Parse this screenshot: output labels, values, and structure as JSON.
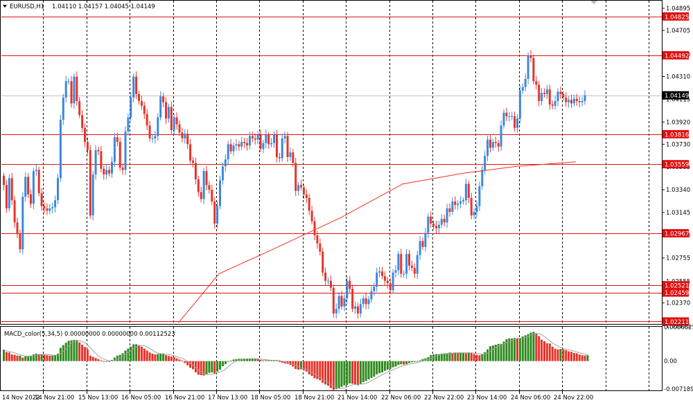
{
  "window": {
    "symbol_label": "EURUSD,H1",
    "ohlc_label": "1.04110 1.04157 1.04045 1.04149",
    "menu_icon": "triangle-down-icon"
  },
  "colors": {
    "bull": "#3c87dc",
    "bear": "#e5332a",
    "hline": "#e01010",
    "ma": "#f03020",
    "grid": "#000000",
    "macd_bull": "#2e8b1e",
    "macd_bear": "#e5332a",
    "signal": "#a0a0a0",
    "price_box": "#e01010",
    "current_box": "#000000"
  },
  "chart_data": [
    {
      "type": "candlestick",
      "title": "EURUSD,H1",
      "ylim": [
        1.0219,
        1.0496
      ],
      "y_ticks": [
        "1.04895",
        "1.04705",
        "1.04500",
        "1.04310",
        "1.04115",
        "1.03920",
        "1.03730",
        "1.03535",
        "1.03340",
        "1.03145",
        "1.02950",
        "1.02755",
        "1.02555",
        "1.02370",
        "1.02175"
      ],
      "x_ticks": [
        "14 Nov 2022",
        "14 Nov 21:00",
        "15 Nov 13:00",
        "16 Nov 05:00",
        "16 Nov 21:00",
        "17 Nov 13:00",
        "18 Nov 05:00",
        "18 Nov 21:00",
        "21 Nov 14:00",
        "22 Nov 06:00",
        "22 Nov 22:00",
        "23 Nov 14:00",
        "24 Nov 06:00",
        "24 Nov 22:00"
      ],
      "grid": "vertical dashed",
      "bars_per_label": 16,
      "horizontal_levels": [
        "1.04825",
        "1.04492",
        "1.03816",
        "1.03559",
        "1.02967",
        "1.02521",
        "1.02459",
        "1.02211"
      ],
      "current_price": "1.04149",
      "moving_average": [
        [
          65,
          1.022
        ],
        [
          80,
          1.0262
        ],
        [
          100,
          1.0283
        ],
        [
          125,
          1.031
        ],
        [
          148,
          1.0339
        ],
        [
          158,
          1.0343
        ],
        [
          170,
          1.0348
        ],
        [
          190,
          1.0354
        ],
        [
          212,
          1.0358
        ]
      ],
      "closes": [
        1.0338,
        1.0318,
        1.0344,
        1.0325,
        1.0306,
        1.0296,
        1.0283,
        1.0328,
        1.0345,
        1.033,
        1.0322,
        1.035,
        1.0351,
        1.0331,
        1.032,
        1.0318,
        1.0316,
        1.0318,
        1.0319,
        1.0325,
        1.0344,
        1.0394,
        1.0413,
        1.0427,
        1.0427,
        1.0408,
        1.0431,
        1.041,
        1.0398,
        1.0387,
        1.0375,
        1.0368,
        1.0312,
        1.0347,
        1.0368,
        1.0367,
        1.0352,
        1.0347,
        1.0351,
        1.0348,
        1.0358,
        1.0379,
        1.0375,
        1.0353,
        1.0351,
        1.0384,
        1.0396,
        1.0413,
        1.0431,
        1.0416,
        1.041,
        1.0406,
        1.0399,
        1.0389,
        1.0378,
        1.0378,
        1.038,
        1.0396,
        1.0414,
        1.0409,
        1.0395,
        1.0405,
        1.0385,
        1.0396,
        1.039,
        1.0383,
        1.0378,
        1.0382,
        1.0373,
        1.0359,
        1.0357,
        1.0343,
        1.0332,
        1.0326,
        1.035,
        1.0338,
        1.0334,
        1.0324,
        1.0305,
        1.032,
        1.0342,
        1.0354,
        1.036,
        1.0373,
        1.0367,
        1.0372,
        1.0373,
        1.0371,
        1.0375,
        1.0374,
        1.0372,
        1.038,
        1.0378,
        1.0377,
        1.0381,
        1.0369,
        1.0374,
        1.0381,
        1.0373,
        1.0374,
        1.0381,
        1.0362,
        1.0361,
        1.0378,
        1.038,
        1.0362,
        1.0366,
        1.0357,
        1.0333,
        1.0338,
        1.0336,
        1.033,
        1.0327,
        1.0316,
        1.0307,
        1.0295,
        1.0288,
        1.0281,
        1.0263,
        1.0256,
        1.0256,
        1.025,
        1.0228,
        1.0232,
        1.0243,
        1.0234,
        1.0241,
        1.0256,
        1.0249,
        1.0232,
        1.0234,
        1.0228,
        1.0236,
        1.0241,
        1.0236,
        1.024,
        1.0247,
        1.0251,
        1.0263,
        1.0264,
        1.026,
        1.0256,
        1.0254,
        1.0248,
        1.0263,
        1.0265,
        1.0279,
        1.0262,
        1.0262,
        1.0279,
        1.0269,
        1.0267,
        1.0262,
        1.0278,
        1.029,
        1.0285,
        1.0297,
        1.0311,
        1.0305,
        1.0303,
        1.0301,
        1.0304,
        1.0309,
        1.0306,
        1.0318,
        1.0315,
        1.0324,
        1.0321,
        1.0322,
        1.0324,
        1.0325,
        1.0339,
        1.0327,
        1.0312,
        1.0315,
        1.032,
        1.0337,
        1.0351,
        1.0363,
        1.0377,
        1.037,
        1.0375,
        1.0374,
        1.0371,
        1.0389,
        1.04,
        1.0397,
        1.0397,
        1.0397,
        1.0387,
        1.0395,
        1.0419,
        1.0422,
        1.0429,
        1.0449,
        1.0447,
        1.0427,
        1.0424,
        1.041,
        1.0417,
        1.0416,
        1.042,
        1.0407,
        1.0406,
        1.041,
        1.0418,
        1.0416,
        1.0413,
        1.0409,
        1.0411,
        1.0408,
        1.0412,
        1.041,
        1.0409,
        1.041,
        1.0415
      ]
    },
    {
      "type": "bar",
      "title": "MACD_color(5,34,5) 0.00000000 0.00000000 0.00112523",
      "ylim": [
        -0.0075,
        0.0088
      ],
      "y_ticks": [
        "0.00868257",
        "0.00",
        "-0.00718935"
      ],
      "values": [
        0.0029,
        0.0023,
        0.0022,
        0.0017,
        0.0016,
        0.0014,
        0.0014,
        0.0009,
        0.0012,
        0.0013,
        0.0014,
        0.0017,
        0.0019,
        0.0018,
        0.0018,
        0.0016,
        0.0015,
        0.0014,
        0.0014,
        0.0015,
        0.0019,
        0.0034,
        0.0041,
        0.0047,
        0.0052,
        0.0053,
        0.0054,
        0.0054,
        0.0048,
        0.0042,
        0.0036,
        0.003,
        0.0014,
        0.0011,
        0.0008,
        0.0005,
        0.0002,
        -0.0001,
        -0.0001,
        0.0,
        0.0003,
        0.0009,
        0.0014,
        0.0016,
        0.002,
        0.0027,
        0.0032,
        0.0037,
        0.0043,
        0.0043,
        0.0041,
        0.0037,
        0.0032,
        0.0027,
        0.0022,
        0.0019,
        0.0017,
        0.0018,
        0.0019,
        0.0019,
        0.0015,
        0.0013,
        0.0012,
        0.001,
        0.0007,
        0.0004,
        0.0001,
        -0.0005,
        -0.0011,
        -0.0017,
        -0.0021,
        -0.0029,
        -0.0035,
        -0.0036,
        -0.0037,
        -0.0034,
        -0.003,
        -0.0029,
        -0.0032,
        -0.0027,
        -0.0022,
        -0.0013,
        -0.0008,
        -0.0002,
        0.0001,
        0.0004,
        0.0005,
        0.0006,
        0.0006,
        0.0006,
        0.0006,
        0.0006,
        0.0006,
        0.0006,
        0.0005,
        0.0003,
        0.0002,
        0.0002,
        0.0002,
        0.0002,
        0.0002,
        0.0002,
        -0.0002,
        -0.0004,
        -0.0006,
        -0.0007,
        -0.001,
        -0.0014,
        -0.002,
        -0.0022,
        -0.0021,
        -0.0024,
        -0.0027,
        -0.0034,
        -0.0038,
        -0.0044,
        -0.0046,
        -0.0049,
        -0.0056,
        -0.006,
        -0.0063,
        -0.0069,
        -0.0074,
        -0.0072,
        -0.007,
        -0.0066,
        -0.0062,
        -0.0061,
        -0.0057,
        -0.0058,
        -0.006,
        -0.0062,
        -0.0058,
        -0.0054,
        -0.0051,
        -0.0047,
        -0.0043,
        -0.004,
        -0.0034,
        -0.0031,
        -0.0029,
        -0.0025,
        -0.0022,
        -0.002,
        -0.0016,
        -0.0014,
        -0.001,
        -0.0008,
        -0.0009,
        -0.0008,
        -0.0005,
        -0.0003,
        -0.0002,
        -0.0001,
        0.0002,
        0.0005,
        0.0007,
        0.001,
        0.0015,
        0.0017,
        0.0018,
        0.0018,
        0.0019,
        0.002,
        0.002,
        0.0022,
        0.0021,
        0.0022,
        0.0021,
        0.0021,
        0.0021,
        0.002,
        0.0022,
        0.0021,
        0.0018,
        0.0016,
        0.0015,
        0.0018,
        0.0023,
        0.003,
        0.0038,
        0.004,
        0.0042,
        0.0044,
        0.0044,
        0.005,
        0.0056,
        0.0058,
        0.0058,
        0.0059,
        0.0058,
        0.0059,
        0.0063,
        0.0066,
        0.0069,
        0.0073,
        0.0075,
        0.007,
        0.0064,
        0.0055,
        0.0051,
        0.0046,
        0.0045,
        0.0037,
        0.0032,
        0.003,
        0.0031,
        0.003,
        0.0028,
        0.0025,
        0.0024,
        0.0021,
        0.002,
        0.0017,
        0.0015,
        0.0014,
        0.0015
      ]
    }
  ]
}
